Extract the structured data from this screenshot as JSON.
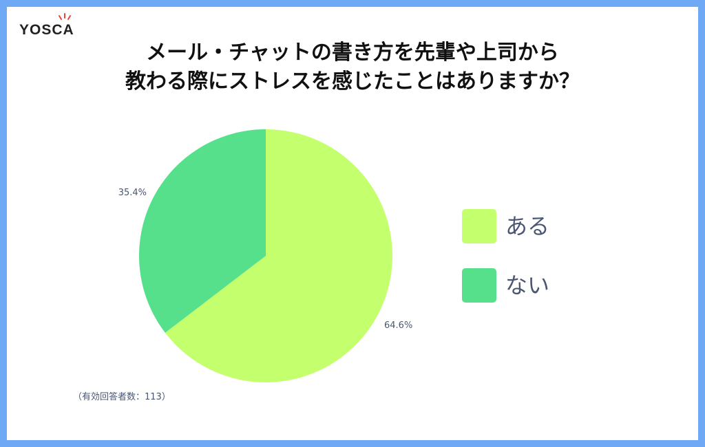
{
  "logo": {
    "text": "YOSCA"
  },
  "chart_data": {
    "type": "pie",
    "title_lines": [
      "メール・チャットの書き方を先輩や上司から",
      "教わる際にストレスを感じたことはありますか？"
    ],
    "categories": [
      "ある",
      "ない"
    ],
    "values": [
      64.6,
      35.4
    ],
    "data_labels": [
      "64.6%",
      "35.4%"
    ],
    "colors": [
      "#c4ff6e",
      "#57e08b"
    ],
    "legend_position": "right",
    "note": "（有効回答者数：113）"
  }
}
